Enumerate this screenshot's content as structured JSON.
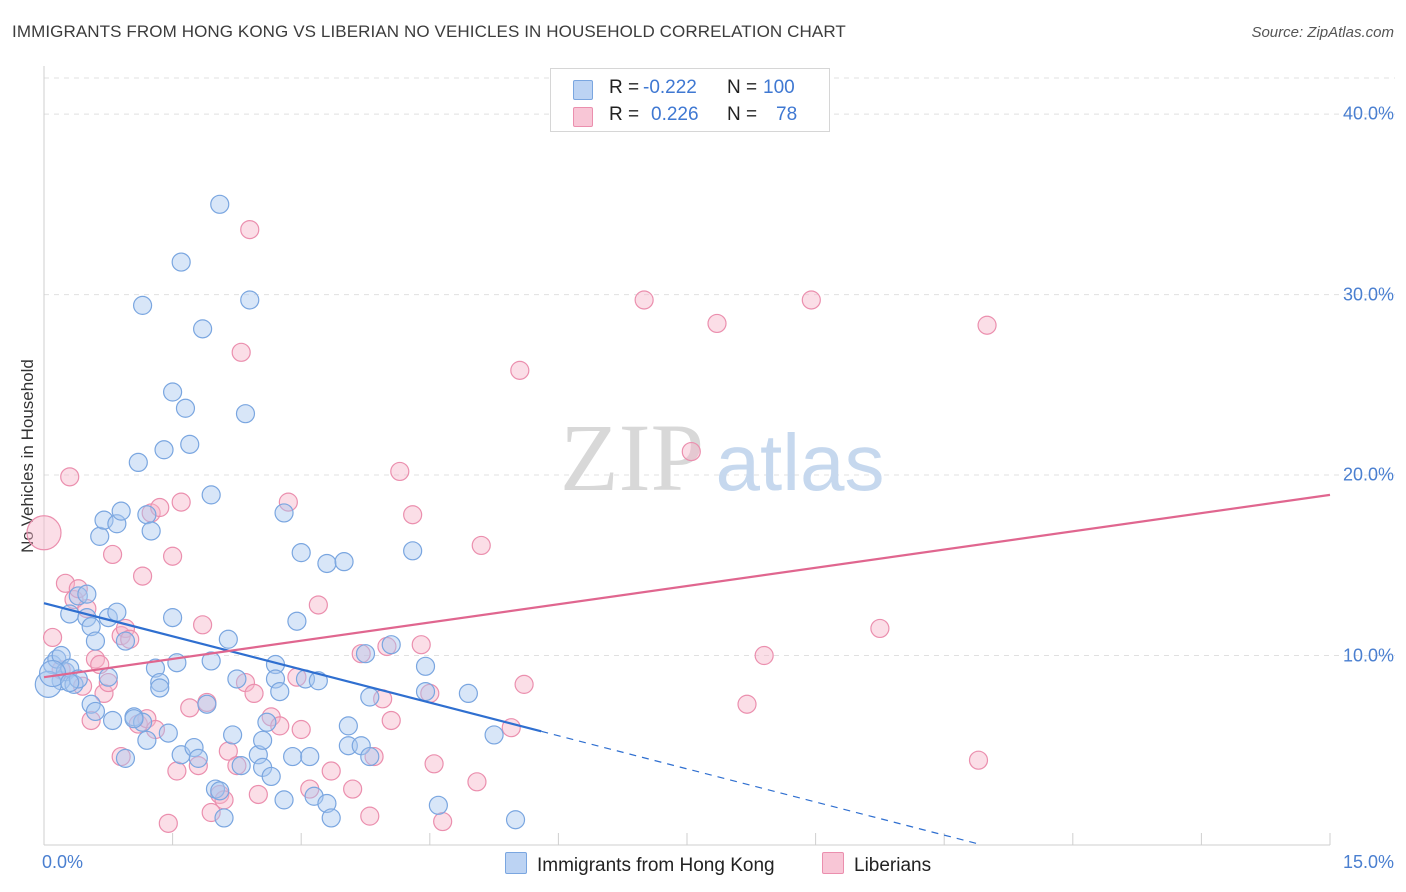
{
  "header": {
    "title": "IMMIGRANTS FROM HONG KONG VS LIBERIAN NO VEHICLES IN HOUSEHOLD CORRELATION CHART",
    "source": "Source: ZipAtlas.com"
  },
  "watermark": {
    "zip": "ZIP",
    "atlas": "atlas"
  },
  "legend": {
    "r_label": "R =",
    "n_label": "N =",
    "series": [
      {
        "name": "Immigrants from Hong Kong",
        "r": "-0.222",
        "n": "100"
      },
      {
        "name": "Liberians",
        "r": "0.226",
        "n": "78"
      }
    ]
  },
  "colors": {
    "blue_fill": "#a9c7f0",
    "blue_stroke": "#7aa6e0",
    "blue_line": "#2f6fd0",
    "pink_fill": "#f6b6ca",
    "pink_stroke": "#eb8fae",
    "pink_line": "#e0668f",
    "axis_text": "#4a7fd0"
  },
  "chart_data": {
    "type": "scatter",
    "title": "IMMIGRANTS FROM HONG KONG VS LIBERIAN NO VEHICLES IN HOUSEHOLD CORRELATION CHART",
    "xlabel": "",
    "ylabel": "No Vehicles in Household",
    "xlim": [
      0,
      15
    ],
    "ylim": [
      -0.5,
      42
    ],
    "x_tick_labels": [
      "0.0%",
      "15.0%"
    ],
    "y_ticks": [
      10,
      20,
      30,
      40
    ],
    "y_tick_labels": [
      "10.0%",
      "20.0%",
      "30.0%",
      "40.0%"
    ],
    "grid": true,
    "series": [
      {
        "name": "Immigrants from Hong Kong",
        "trend": {
          "x0": 0,
          "y0": 12.9,
          "x1": 5.8,
          "y1": 5.8,
          "dash_to_x": 10.9
        },
        "points": [
          [
            0.1,
            9.5
          ],
          [
            0.15,
            9.8
          ],
          [
            0.2,
            10.0
          ],
          [
            0.2,
            8.6
          ],
          [
            0.25,
            9.1
          ],
          [
            0.3,
            12.3
          ],
          [
            0.3,
            9.3
          ],
          [
            0.35,
            8.4
          ],
          [
            0.4,
            8.7
          ],
          [
            0.4,
            13.3
          ],
          [
            0.5,
            12.1
          ],
          [
            0.5,
            13.4
          ],
          [
            0.55,
            11.6
          ],
          [
            0.55,
            7.3
          ],
          [
            0.6,
            6.9
          ],
          [
            0.6,
            10.8
          ],
          [
            0.65,
            16.6
          ],
          [
            0.7,
            17.5
          ],
          [
            0.75,
            12.1
          ],
          [
            0.75,
            8.8
          ],
          [
            0.8,
            6.4
          ],
          [
            0.85,
            17.3
          ],
          [
            0.85,
            12.4
          ],
          [
            0.9,
            18.0
          ],
          [
            0.95,
            10.8
          ],
          [
            0.95,
            4.3
          ],
          [
            1.05,
            6.6
          ],
          [
            1.1,
            20.7
          ],
          [
            1.15,
            6.3
          ],
          [
            1.15,
            29.4
          ],
          [
            1.2,
            5.3
          ],
          [
            1.2,
            17.8
          ],
          [
            1.25,
            16.9
          ],
          [
            1.3,
            9.3
          ],
          [
            1.35,
            8.5
          ],
          [
            1.35,
            8.2
          ],
          [
            1.4,
            21.4
          ],
          [
            1.45,
            5.7
          ],
          [
            1.5,
            24.6
          ],
          [
            1.5,
            12.1
          ],
          [
            1.55,
            9.6
          ],
          [
            1.6,
            4.5
          ],
          [
            1.6,
            31.8
          ],
          [
            1.65,
            23.7
          ],
          [
            1.7,
            21.7
          ],
          [
            1.75,
            4.9
          ],
          [
            1.8,
            4.3
          ],
          [
            1.85,
            28.1
          ],
          [
            1.9,
            7.3
          ],
          [
            1.95,
            9.7
          ],
          [
            1.95,
            18.9
          ],
          [
            2.0,
            2.6
          ],
          [
            2.05,
            2.5
          ],
          [
            2.05,
            35.0
          ],
          [
            2.1,
            1.0
          ],
          [
            2.15,
            10.9
          ],
          [
            2.2,
            5.6
          ],
          [
            2.25,
            8.7
          ],
          [
            2.3,
            3.9
          ],
          [
            2.35,
            23.4
          ],
          [
            2.4,
            29.7
          ],
          [
            2.5,
            4.5
          ],
          [
            2.55,
            5.3
          ],
          [
            2.55,
            3.8
          ],
          [
            2.6,
            6.3
          ],
          [
            2.65,
            3.3
          ],
          [
            2.7,
            9.5
          ],
          [
            2.7,
            8.7
          ],
          [
            2.75,
            8.0
          ],
          [
            2.8,
            2.0
          ],
          [
            2.8,
            17.9
          ],
          [
            2.9,
            4.4
          ],
          [
            2.95,
            11.9
          ],
          [
            3.0,
            15.7
          ],
          [
            3.05,
            8.7
          ],
          [
            3.1,
            4.4
          ],
          [
            3.15,
            2.2
          ],
          [
            3.2,
            8.6
          ],
          [
            3.3,
            15.1
          ],
          [
            3.3,
            1.8
          ],
          [
            3.35,
            1.0
          ],
          [
            3.5,
            15.2
          ],
          [
            3.55,
            6.1
          ],
          [
            3.55,
            5.0
          ],
          [
            3.7,
            5.0
          ],
          [
            3.75,
            10.1
          ],
          [
            3.8,
            7.7
          ],
          [
            3.8,
            4.4
          ],
          [
            4.05,
            10.6
          ],
          [
            4.3,
            15.8
          ],
          [
            4.45,
            8.0
          ],
          [
            4.45,
            9.4
          ],
          [
            4.6,
            1.7
          ],
          [
            4.95,
            7.9
          ],
          [
            5.25,
            5.6
          ],
          [
            5.5,
            0.9
          ],
          [
            0.05,
            8.4
          ],
          [
            0.1,
            9.0
          ],
          [
            0.3,
            8.5
          ],
          [
            1.05,
            6.5
          ]
        ]
      },
      {
        "name": "Liberians",
        "trend": {
          "x0": 0,
          "y0": 8.8,
          "x1": 15,
          "y1": 18.9
        },
        "points": [
          [
            0.0,
            16.8
          ],
          [
            0.1,
            11.0
          ],
          [
            0.2,
            9.2
          ],
          [
            0.25,
            14.0
          ],
          [
            0.3,
            19.9
          ],
          [
            0.35,
            13.1
          ],
          [
            0.4,
            13.7
          ],
          [
            0.45,
            8.3
          ],
          [
            0.5,
            12.6
          ],
          [
            0.55,
            6.4
          ],
          [
            0.6,
            9.8
          ],
          [
            0.65,
            9.5
          ],
          [
            0.7,
            7.9
          ],
          [
            0.75,
            8.5
          ],
          [
            0.8,
            15.6
          ],
          [
            0.9,
            11.1
          ],
          [
            0.9,
            4.4
          ],
          [
            0.95,
            11.5
          ],
          [
            1.0,
            10.9
          ],
          [
            1.1,
            6.2
          ],
          [
            1.15,
            14.4
          ],
          [
            1.2,
            6.5
          ],
          [
            1.25,
            17.9
          ],
          [
            1.3,
            5.9
          ],
          [
            1.35,
            18.2
          ],
          [
            1.45,
            0.7
          ],
          [
            1.5,
            15.5
          ],
          [
            1.55,
            3.6
          ],
          [
            1.6,
            18.5
          ],
          [
            1.7,
            7.1
          ],
          [
            1.8,
            3.9
          ],
          [
            1.85,
            11.7
          ],
          [
            1.9,
            7.4
          ],
          [
            1.95,
            1.3
          ],
          [
            2.05,
            2.3
          ],
          [
            2.1,
            2.0
          ],
          [
            2.15,
            4.7
          ],
          [
            2.25,
            3.9
          ],
          [
            2.3,
            26.8
          ],
          [
            2.35,
            8.5
          ],
          [
            2.4,
            33.6
          ],
          [
            2.45,
            7.9
          ],
          [
            2.5,
            2.3
          ],
          [
            2.65,
            6.6
          ],
          [
            2.75,
            6.1
          ],
          [
            2.85,
            18.5
          ],
          [
            2.95,
            8.8
          ],
          [
            3.0,
            5.9
          ],
          [
            3.1,
            2.6
          ],
          [
            3.2,
            12.8
          ],
          [
            3.35,
            3.6
          ],
          [
            3.6,
            2.6
          ],
          [
            3.7,
            10.1
          ],
          [
            3.8,
            1.1
          ],
          [
            3.85,
            4.4
          ],
          [
            3.95,
            7.6
          ],
          [
            4.0,
            10.5
          ],
          [
            4.05,
            6.4
          ],
          [
            4.15,
            20.2
          ],
          [
            4.3,
            17.8
          ],
          [
            4.4,
            10.6
          ],
          [
            4.5,
            7.9
          ],
          [
            4.55,
            4.0
          ],
          [
            4.65,
            0.8
          ],
          [
            5.05,
            3.0
          ],
          [
            5.1,
            16.1
          ],
          [
            5.45,
            6.0
          ],
          [
            5.55,
            25.8
          ],
          [
            5.6,
            8.4
          ],
          [
            7.0,
            29.7
          ],
          [
            7.55,
            21.3
          ],
          [
            7.85,
            28.4
          ],
          [
            8.2,
            7.3
          ],
          [
            8.4,
            10.0
          ],
          [
            8.95,
            29.7
          ],
          [
            9.75,
            11.5
          ],
          [
            10.9,
            4.2
          ],
          [
            11.0,
            28.3
          ]
        ]
      }
    ]
  }
}
